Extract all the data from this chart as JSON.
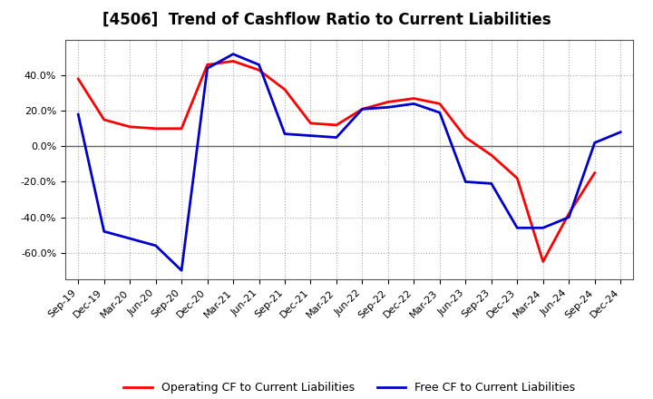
{
  "title": "[4506]  Trend of Cashflow Ratio to Current Liabilities",
  "x_labels": [
    "Sep-19",
    "Dec-19",
    "Mar-20",
    "Jun-20",
    "Sep-20",
    "Dec-20",
    "Mar-21",
    "Jun-21",
    "Sep-21",
    "Dec-21",
    "Mar-22",
    "Jun-22",
    "Sep-22",
    "Dec-22",
    "Mar-23",
    "Jun-23",
    "Sep-23",
    "Dec-23",
    "Mar-24",
    "Jun-24",
    "Sep-24",
    "Dec-24"
  ],
  "operating_cf": [
    38.0,
    15.0,
    11.0,
    10.0,
    10.0,
    46.0,
    48.0,
    43.0,
    32.0,
    13.0,
    12.0,
    21.0,
    25.0,
    27.0,
    24.0,
    5.0,
    -5.0,
    -18.0,
    -65.0,
    -38.0,
    -15.0,
    null
  ],
  "free_cf": [
    18.0,
    -48.0,
    -52.0,
    -56.0,
    -70.0,
    44.0,
    52.0,
    46.0,
    7.0,
    6.0,
    5.0,
    21.0,
    22.0,
    24.0,
    19.0,
    -20.0,
    -21.0,
    -46.0,
    -46.0,
    -40.0,
    2.0,
    8.0
  ],
  "operating_color": "#ff0000",
  "free_color": "#0000cc",
  "ylim": [
    -75,
    60
  ],
  "yticks": [
    -60,
    -40,
    -20,
    0,
    20,
    40
  ],
  "background_color": "#ffffff",
  "plot_bg_color": "#ffffff",
  "grid_color": "#aaaaaa",
  "legend_operating": "Operating CF to Current Liabilities",
  "legend_free": "Free CF to Current Liabilities",
  "line_width": 2.0,
  "title_fontsize": 12,
  "tick_fontsize": 8
}
